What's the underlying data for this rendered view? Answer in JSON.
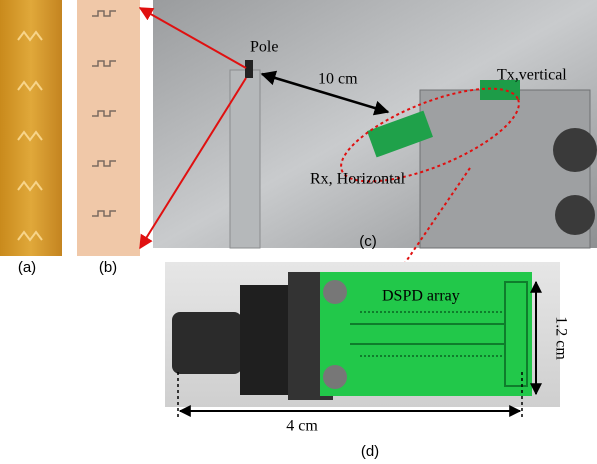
{
  "panels": [
    {
      "label": "(a)"
    },
    {
      "label": "(b)"
    },
    {
      "label": "(c)",
      "annotations": [
        "Pole",
        "10 cm",
        "Tx,vertical",
        "Rx, Horizontal"
      ]
    },
    {
      "label": "(d)",
      "annotations": [
        "DSPD array",
        "1.2 cm",
        "4 cm"
      ]
    }
  ]
}
